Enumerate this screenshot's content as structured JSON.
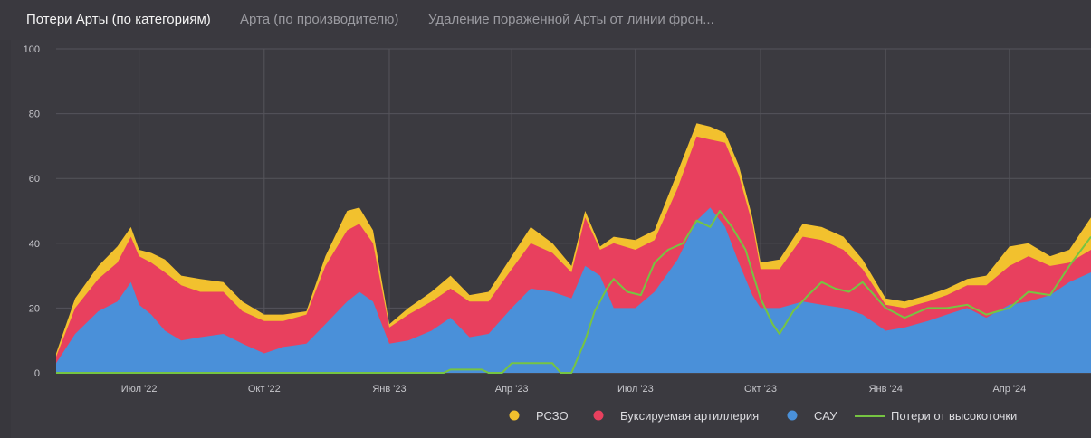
{
  "tabs": [
    {
      "label": "Потери Арты (по категориям)",
      "active": true
    },
    {
      "label": "Арта (по производителю)",
      "active": false
    },
    {
      "label": "Удаление пораженной Арты от линии фрон...",
      "active": false
    }
  ],
  "chart_data": {
    "type": "area",
    "stacked": true,
    "ylim": [
      0,
      100
    ],
    "yticks": [
      "0",
      "20",
      "40",
      "60",
      "80",
      "100"
    ],
    "xticks": [
      "Июл '22",
      "Окт '22",
      "Янв '23",
      "Апр '23",
      "Июл '23",
      "Окт '23",
      "Янв '24",
      "Апр '24"
    ],
    "x_start": "2022-05-01",
    "x_end": "2024-05-31",
    "grid": true,
    "legend_position": "bottom-right",
    "series": [
      {
        "name": "САУ",
        "color": "#4a90d9",
        "kind": "area",
        "points": [
          [
            "2022-05-01",
            3
          ],
          [
            "2022-05-15",
            12
          ],
          [
            "2022-06-01",
            19
          ],
          [
            "2022-06-15",
            22
          ],
          [
            "2022-06-25",
            28
          ],
          [
            "2022-07-01",
            21
          ],
          [
            "2022-07-10",
            18
          ],
          [
            "2022-07-20",
            13
          ],
          [
            "2022-08-01",
            10
          ],
          [
            "2022-08-15",
            11
          ],
          [
            "2022-09-01",
            12
          ],
          [
            "2022-09-15",
            9
          ],
          [
            "2022-10-01",
            6
          ],
          [
            "2022-10-15",
            8
          ],
          [
            "2022-11-01",
            9
          ],
          [
            "2022-11-15",
            15
          ],
          [
            "2022-12-01",
            22
          ],
          [
            "2022-12-10",
            25
          ],
          [
            "2022-12-20",
            22
          ],
          [
            "2023-01-01",
            9
          ],
          [
            "2023-01-15",
            10
          ],
          [
            "2023-02-01",
            13
          ],
          [
            "2023-02-15",
            17
          ],
          [
            "2023-03-01",
            11
          ],
          [
            "2023-03-15",
            12
          ],
          [
            "2023-04-01",
            20
          ],
          [
            "2023-04-15",
            26
          ],
          [
            "2023-05-01",
            25
          ],
          [
            "2023-05-15",
            23
          ],
          [
            "2023-05-25",
            33
          ],
          [
            "2023-06-05",
            30
          ],
          [
            "2023-06-15",
            20
          ],
          [
            "2023-07-01",
            20
          ],
          [
            "2023-07-15",
            25
          ],
          [
            "2023-08-01",
            35
          ],
          [
            "2023-08-15",
            47
          ],
          [
            "2023-08-25",
            51
          ],
          [
            "2023-09-05",
            45
          ],
          [
            "2023-09-15",
            34
          ],
          [
            "2023-09-25",
            24
          ],
          [
            "2023-10-01",
            20
          ],
          [
            "2023-10-15",
            20
          ],
          [
            "2023-11-01",
            22
          ],
          [
            "2023-11-15",
            21
          ],
          [
            "2023-12-01",
            20
          ],
          [
            "2023-12-15",
            18
          ],
          [
            "2024-01-01",
            13
          ],
          [
            "2024-01-15",
            14
          ],
          [
            "2024-02-01",
            16
          ],
          [
            "2024-02-15",
            18
          ],
          [
            "2024-03-01",
            20
          ],
          [
            "2024-03-15",
            17
          ],
          [
            "2024-04-01",
            21
          ],
          [
            "2024-04-15",
            22
          ],
          [
            "2024-05-01",
            24
          ],
          [
            "2024-05-15",
            28
          ],
          [
            "2024-05-31",
            31
          ]
        ]
      },
      {
        "name": "Буксируемая артиллерия",
        "color": "#e8405e",
        "kind": "area",
        "points": [
          [
            "2022-05-01",
            2
          ],
          [
            "2022-05-15",
            8
          ],
          [
            "2022-06-01",
            10
          ],
          [
            "2022-06-15",
            12
          ],
          [
            "2022-06-25",
            14
          ],
          [
            "2022-07-01",
            15
          ],
          [
            "2022-07-10",
            16
          ],
          [
            "2022-07-20",
            18
          ],
          [
            "2022-08-01",
            17
          ],
          [
            "2022-08-15",
            14
          ],
          [
            "2022-09-01",
            13
          ],
          [
            "2022-09-15",
            10
          ],
          [
            "2022-10-01",
            10
          ],
          [
            "2022-10-15",
            8
          ],
          [
            "2022-11-01",
            9
          ],
          [
            "2022-11-15",
            18
          ],
          [
            "2022-12-01",
            22
          ],
          [
            "2022-12-10",
            21
          ],
          [
            "2022-12-20",
            18
          ],
          [
            "2023-01-01",
            5
          ],
          [
            "2023-01-15",
            8
          ],
          [
            "2023-02-01",
            9
          ],
          [
            "2023-02-15",
            9
          ],
          [
            "2023-03-01",
            11
          ],
          [
            "2023-03-15",
            10
          ],
          [
            "2023-04-01",
            12
          ],
          [
            "2023-04-15",
            14
          ],
          [
            "2023-05-01",
            12
          ],
          [
            "2023-05-15",
            8
          ],
          [
            "2023-05-25",
            15
          ],
          [
            "2023-06-05",
            8
          ],
          [
            "2023-06-15",
            20
          ],
          [
            "2023-07-01",
            18
          ],
          [
            "2023-07-15",
            16
          ],
          [
            "2023-08-01",
            22
          ],
          [
            "2023-08-15",
            26
          ],
          [
            "2023-08-25",
            21
          ],
          [
            "2023-09-05",
            26
          ],
          [
            "2023-09-15",
            27
          ],
          [
            "2023-09-25",
            22
          ],
          [
            "2023-10-01",
            12
          ],
          [
            "2023-10-15",
            12
          ],
          [
            "2023-11-01",
            20
          ],
          [
            "2023-11-15",
            20
          ],
          [
            "2023-12-01",
            18
          ],
          [
            "2023-12-15",
            14
          ],
          [
            "2024-01-01",
            8
          ],
          [
            "2024-01-15",
            6
          ],
          [
            "2024-02-01",
            6
          ],
          [
            "2024-02-15",
            6
          ],
          [
            "2024-03-01",
            7
          ],
          [
            "2024-03-15",
            10
          ],
          [
            "2024-04-01",
            12
          ],
          [
            "2024-04-15",
            14
          ],
          [
            "2024-05-01",
            9
          ],
          [
            "2024-05-15",
            6
          ],
          [
            "2024-05-31",
            7
          ]
        ]
      },
      {
        "name": "РСЗО",
        "color": "#f2c12e",
        "kind": "area",
        "points": [
          [
            "2022-05-01",
            1
          ],
          [
            "2022-05-15",
            3
          ],
          [
            "2022-06-01",
            4
          ],
          [
            "2022-06-15",
            5
          ],
          [
            "2022-06-25",
            3
          ],
          [
            "2022-07-01",
            2
          ],
          [
            "2022-07-10",
            3
          ],
          [
            "2022-07-20",
            4
          ],
          [
            "2022-08-01",
            3
          ],
          [
            "2022-08-15",
            4
          ],
          [
            "2022-09-01",
            3
          ],
          [
            "2022-09-15",
            3
          ],
          [
            "2022-10-01",
            2
          ],
          [
            "2022-10-15",
            2
          ],
          [
            "2022-11-01",
            1
          ],
          [
            "2022-11-15",
            3
          ],
          [
            "2022-12-01",
            6
          ],
          [
            "2022-12-10",
            5
          ],
          [
            "2022-12-20",
            4
          ],
          [
            "2023-01-01",
            1
          ],
          [
            "2023-01-15",
            2
          ],
          [
            "2023-02-01",
            3
          ],
          [
            "2023-02-15",
            4
          ],
          [
            "2023-03-01",
            2
          ],
          [
            "2023-03-15",
            3
          ],
          [
            "2023-04-01",
            4
          ],
          [
            "2023-04-15",
            5
          ],
          [
            "2023-05-01",
            3
          ],
          [
            "2023-05-15",
            2
          ],
          [
            "2023-05-25",
            2
          ],
          [
            "2023-06-05",
            1
          ],
          [
            "2023-06-15",
            2
          ],
          [
            "2023-07-01",
            3
          ],
          [
            "2023-07-15",
            3
          ],
          [
            "2023-08-01",
            5
          ],
          [
            "2023-08-15",
            4
          ],
          [
            "2023-08-25",
            4
          ],
          [
            "2023-09-05",
            3
          ],
          [
            "2023-09-15",
            3
          ],
          [
            "2023-09-25",
            2
          ],
          [
            "2023-10-01",
            2
          ],
          [
            "2023-10-15",
            3
          ],
          [
            "2023-11-01",
            4
          ],
          [
            "2023-11-15",
            4
          ],
          [
            "2023-12-01",
            4
          ],
          [
            "2023-12-15",
            3
          ],
          [
            "2024-01-01",
            2
          ],
          [
            "2024-01-15",
            2
          ],
          [
            "2024-02-01",
            2
          ],
          [
            "2024-02-15",
            2
          ],
          [
            "2024-03-01",
            2
          ],
          [
            "2024-03-15",
            3
          ],
          [
            "2024-04-01",
            6
          ],
          [
            "2024-04-15",
            4
          ],
          [
            "2024-05-01",
            3
          ],
          [
            "2024-05-15",
            4
          ],
          [
            "2024-05-31",
            10
          ]
        ]
      },
      {
        "name": "Потери от высокоточки",
        "color": "#76c442",
        "kind": "line",
        "points": [
          [
            "2022-05-01",
            0
          ],
          [
            "2023-02-10",
            0
          ],
          [
            "2023-02-15",
            1
          ],
          [
            "2023-03-10",
            1
          ],
          [
            "2023-03-15",
            0
          ],
          [
            "2023-03-25",
            0
          ],
          [
            "2023-04-01",
            3
          ],
          [
            "2023-04-10",
            3
          ],
          [
            "2023-05-01",
            3
          ],
          [
            "2023-05-07",
            0
          ],
          [
            "2023-05-15",
            0
          ],
          [
            "2023-05-25",
            10
          ],
          [
            "2023-06-01",
            19
          ],
          [
            "2023-06-10",
            26
          ],
          [
            "2023-06-15",
            29
          ],
          [
            "2023-06-25",
            25
          ],
          [
            "2023-07-05",
            24
          ],
          [
            "2023-07-15",
            34
          ],
          [
            "2023-07-25",
            38
          ],
          [
            "2023-08-05",
            40
          ],
          [
            "2023-08-15",
            47
          ],
          [
            "2023-08-25",
            45
          ],
          [
            "2023-09-01",
            50
          ],
          [
            "2023-09-10",
            45
          ],
          [
            "2023-09-20",
            38
          ],
          [
            "2023-09-25",
            31
          ],
          [
            "2023-10-01",
            23
          ],
          [
            "2023-10-10",
            15
          ],
          [
            "2023-10-15",
            12
          ],
          [
            "2023-10-25",
            19
          ],
          [
            "2023-11-05",
            24
          ],
          [
            "2023-11-15",
            28
          ],
          [
            "2023-11-25",
            26
          ],
          [
            "2023-12-05",
            25
          ],
          [
            "2023-12-15",
            28
          ],
          [
            "2024-01-01",
            20
          ],
          [
            "2024-01-15",
            17
          ],
          [
            "2024-02-01",
            20
          ],
          [
            "2024-02-15",
            20
          ],
          [
            "2024-03-01",
            21
          ],
          [
            "2024-03-15",
            18
          ],
          [
            "2024-04-01",
            20
          ],
          [
            "2024-04-15",
            25
          ],
          [
            "2024-05-01",
            24
          ],
          [
            "2024-05-15",
            33
          ],
          [
            "2024-05-31",
            42
          ]
        ]
      }
    ]
  }
}
